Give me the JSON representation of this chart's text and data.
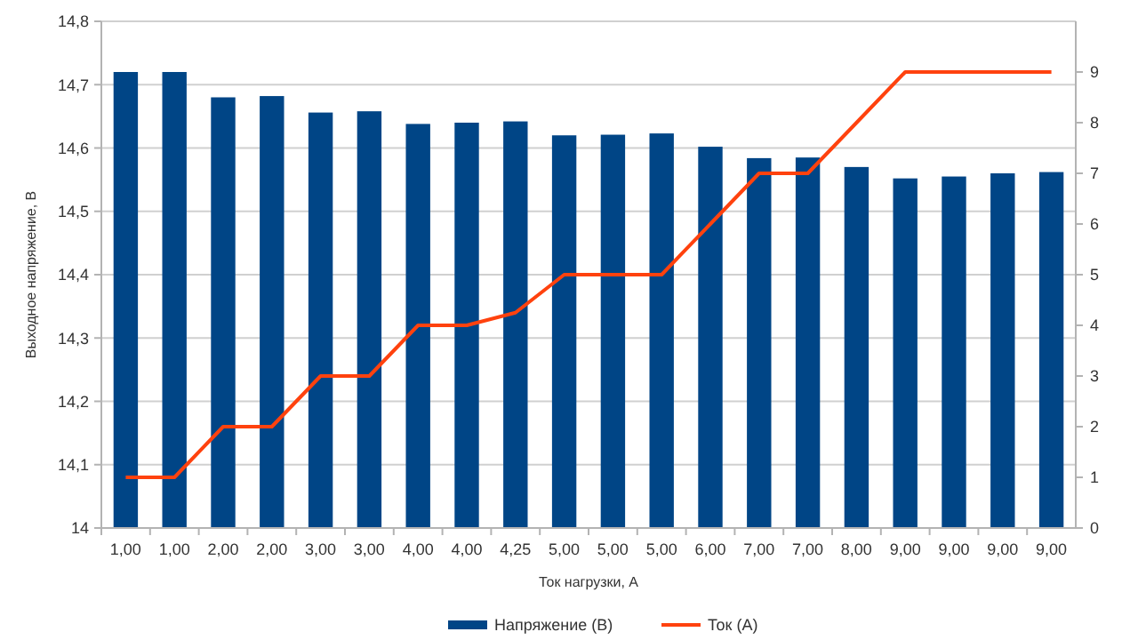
{
  "chart_data": {
    "type": "bar",
    "xlabel": "Ток нагрузки, А",
    "ylabel": "Выходное напряжение, В",
    "categories": [
      "1,00",
      "1,00",
      "2,00",
      "2,00",
      "3,00",
      "3,00",
      "4,00",
      "4,00",
      "4,25",
      "5,00",
      "5,00",
      "5,00",
      "6,00",
      "7,00",
      "7,00",
      "8,00",
      "9,00",
      "9,00",
      "9,00",
      "9,00"
    ],
    "series": [
      {
        "name": "Напряжение (В)",
        "color": "#004586",
        "values": [
          14.72,
          14.72,
          14.68,
          14.682,
          14.656,
          14.658,
          14.638,
          14.64,
          14.642,
          14.62,
          14.621,
          14.623,
          14.602,
          14.584,
          14.585,
          14.57,
          14.552,
          14.555,
          14.56,
          14.562
        ]
      },
      {
        "name": "Ток (А)",
        "type": "line",
        "axis": "y2",
        "color": "#ff420e",
        "values": [
          1,
          1,
          2,
          2,
          3,
          3,
          4,
          4,
          4.25,
          5,
          5,
          5,
          6,
          7,
          7,
          8,
          9,
          9,
          9,
          9
        ]
      }
    ],
    "ylim": [
      14,
      14.8
    ],
    "yticks": [
      {
        "value": 14,
        "label": "14"
      },
      {
        "value": 14.1,
        "label": "14,1"
      },
      {
        "value": 14.2,
        "label": "14,2"
      },
      {
        "value": 14.3,
        "label": "14,3"
      },
      {
        "value": 14.4,
        "label": "14,4"
      },
      {
        "value": 14.5,
        "label": "14,5"
      },
      {
        "value": 14.6,
        "label": "14,6"
      },
      {
        "value": 14.7,
        "label": "14,7"
      },
      {
        "value": 14.8,
        "label": "14,8"
      }
    ],
    "y2lim": [
      0,
      10
    ],
    "y2ticks": [
      0,
      1,
      2,
      3,
      4,
      5,
      6,
      7,
      8,
      9
    ],
    "grid": "y",
    "legend": "bottom",
    "marker": "none",
    "line_style": "solid"
  }
}
